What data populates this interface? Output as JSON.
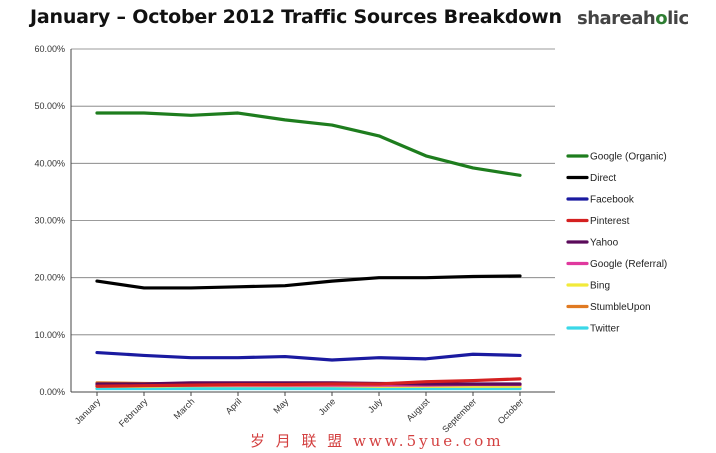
{
  "header": {
    "title": "January – October 2012 Traffic Sources Breakdown",
    "logo_text_pre": "shareah",
    "logo_text_accent": "o",
    "logo_text_post": "lic"
  },
  "watermark": {
    "text": "岁 月 联 盟  www.5yue.com"
  },
  "colors": {
    "Google (Organic)": "#1e7d1e",
    "Direct": "#000000",
    "Facebook": "#1a1aa0",
    "Pinterest": "#d42020",
    "Yahoo": "#5a0a5a",
    "Google (Referral)": "#e0399e",
    "Bing": "#f2ea3a",
    "StumbleUpon": "#e07a22",
    "Twitter": "#3ad8e8"
  },
  "chart_data": {
    "type": "line",
    "title": "January – October 2012 Traffic Sources Breakdown",
    "xlabel": "",
    "ylabel": "",
    "ylim": [
      0,
      60
    ],
    "y_ticks": [
      "0.00%",
      "10.00%",
      "20.00%",
      "30.00%",
      "40.00%",
      "50.00%",
      "60.00%"
    ],
    "grid": true,
    "legend_position": "right",
    "categories": [
      "January",
      "February",
      "March",
      "April",
      "May",
      "June",
      "July",
      "August",
      "September",
      "October"
    ],
    "series": [
      {
        "name": "Google (Organic)",
        "values": [
          48.8,
          48.8,
          48.4,
          48.8,
          47.6,
          46.7,
          44.8,
          41.3,
          39.2,
          37.9
        ]
      },
      {
        "name": "Direct",
        "values": [
          19.4,
          18.2,
          18.2,
          18.4,
          18.6,
          19.4,
          20.0,
          20.0,
          20.2,
          20.3
        ]
      },
      {
        "name": "Facebook",
        "values": [
          6.9,
          6.4,
          6.0,
          6.0,
          6.2,
          5.6,
          6.0,
          5.8,
          6.6,
          6.4
        ]
      },
      {
        "name": "Pinterest",
        "values": [
          1.0,
          1.1,
          1.2,
          1.3,
          1.3,
          1.4,
          1.4,
          1.8,
          2.0,
          2.3
        ]
      },
      {
        "name": "Yahoo",
        "values": [
          1.4,
          1.4,
          1.6,
          1.6,
          1.6,
          1.6,
          1.5,
          1.4,
          1.4,
          1.4
        ]
      },
      {
        "name": "Google (Referral)",
        "values": [
          1.2,
          1.2,
          1.2,
          1.2,
          1.2,
          1.2,
          1.2,
          1.2,
          1.3,
          1.3
        ]
      },
      {
        "name": "Bing",
        "values": [
          1.0,
          1.0,
          1.1,
          1.1,
          1.1,
          1.1,
          1.0,
          1.0,
          1.0,
          1.0
        ]
      },
      {
        "name": "StumbleUpon",
        "values": [
          1.6,
          1.5,
          1.4,
          1.4,
          1.4,
          1.3,
          1.2,
          1.2,
          1.1,
          1.1
        ]
      },
      {
        "name": "Twitter",
        "values": [
          0.6,
          0.6,
          0.6,
          0.6,
          0.6,
          0.6,
          0.6,
          0.6,
          0.6,
          0.6
        ]
      }
    ]
  }
}
